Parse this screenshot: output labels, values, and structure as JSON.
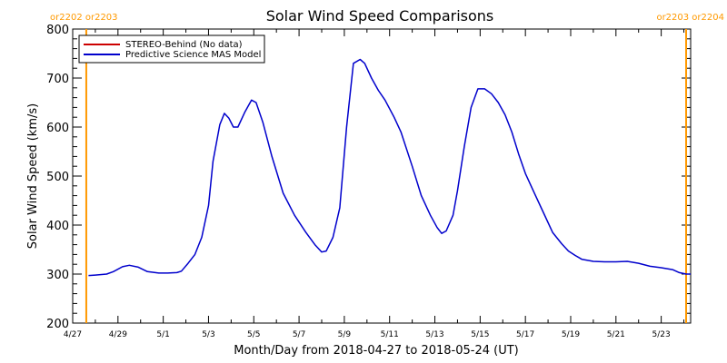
{
  "chart_data": {
    "type": "line",
    "title": "Solar Wind Speed Comparisons",
    "xlabel": "Month/Day from 2018-04-27 to 2018-05-24 (UT)",
    "ylabel": "Solar Wind Speed (km/s)",
    "ylim": [
      200,
      800
    ],
    "yticks": [
      200,
      300,
      400,
      500,
      600,
      700,
      800
    ],
    "x_range_days": [
      0,
      27.3
    ],
    "xticks": [
      {
        "day": 0,
        "label": "4/27"
      },
      {
        "day": 2,
        "label": "4/29"
      },
      {
        "day": 4,
        "label": "5/1"
      },
      {
        "day": 6,
        "label": "5/3"
      },
      {
        "day": 8,
        "label": "5/5"
      },
      {
        "day": 10,
        "label": "5/7"
      },
      {
        "day": 12,
        "label": "5/9"
      },
      {
        "day": 14,
        "label": "5/11"
      },
      {
        "day": 16,
        "label": "5/13"
      },
      {
        "day": 18,
        "label": "5/15"
      },
      {
        "day": 20,
        "label": "5/17"
      },
      {
        "day": 22,
        "label": "5/19"
      },
      {
        "day": 24,
        "label": "5/21"
      },
      {
        "day": 26,
        "label": "5/23"
      }
    ],
    "legend": {
      "placement": "top-left",
      "entries": [
        {
          "label": "STEREO-Behind (No data)",
          "color": "#cc0000"
        },
        {
          "label": "Predictive Science MAS Model",
          "color": "#0000cc"
        }
      ]
    },
    "markers": [
      {
        "day": 0.6,
        "labels": [
          "or2202",
          "or2203"
        ],
        "color": "#ff9900",
        "label_side": "left"
      },
      {
        "day": 27.1,
        "labels": [
          "or2203",
          "or2204"
        ],
        "color": "#ff9900",
        "label_side": "right"
      }
    ],
    "series": [
      {
        "name": "Predictive Science MAS Model",
        "color": "#0000cc",
        "points": [
          [
            0.7,
            297
          ],
          [
            1.0,
            298
          ],
          [
            1.5,
            300
          ],
          [
            1.8,
            305
          ],
          [
            2.2,
            315
          ],
          [
            2.5,
            318
          ],
          [
            2.9,
            314
          ],
          [
            3.3,
            305
          ],
          [
            3.8,
            302
          ],
          [
            4.2,
            302
          ],
          [
            4.6,
            303
          ],
          [
            4.8,
            306
          ],
          [
            5.1,
            322
          ],
          [
            5.4,
            340
          ],
          [
            5.7,
            375
          ],
          [
            6.0,
            440
          ],
          [
            6.2,
            530
          ],
          [
            6.5,
            605
          ],
          [
            6.7,
            628
          ],
          [
            6.9,
            618
          ],
          [
            7.1,
            600
          ],
          [
            7.3,
            600
          ],
          [
            7.6,
            630
          ],
          [
            7.9,
            655
          ],
          [
            8.1,
            650
          ],
          [
            8.4,
            610
          ],
          [
            8.8,
            540
          ],
          [
            9.3,
            465
          ],
          [
            9.8,
            420
          ],
          [
            10.3,
            385
          ],
          [
            10.7,
            360
          ],
          [
            11.0,
            345
          ],
          [
            11.2,
            347
          ],
          [
            11.5,
            375
          ],
          [
            11.8,
            435
          ],
          [
            12.1,
            600
          ],
          [
            12.4,
            730
          ],
          [
            12.7,
            738
          ],
          [
            12.9,
            730
          ],
          [
            13.2,
            700
          ],
          [
            13.5,
            675
          ],
          [
            13.8,
            655
          ],
          [
            14.2,
            620
          ],
          [
            14.5,
            590
          ],
          [
            15.0,
            520
          ],
          [
            15.4,
            460
          ],
          [
            15.8,
            420
          ],
          [
            16.1,
            395
          ],
          [
            16.3,
            383
          ],
          [
            16.5,
            388
          ],
          [
            16.8,
            420
          ],
          [
            17.0,
            470
          ],
          [
            17.3,
            560
          ],
          [
            17.6,
            640
          ],
          [
            17.9,
            678
          ],
          [
            18.2,
            678
          ],
          [
            18.5,
            668
          ],
          [
            18.8,
            650
          ],
          [
            19.1,
            625
          ],
          [
            19.4,
            590
          ],
          [
            19.7,
            545
          ],
          [
            20.0,
            505
          ],
          [
            20.4,
            465
          ],
          [
            20.8,
            425
          ],
          [
            21.2,
            385
          ],
          [
            21.6,
            362
          ],
          [
            21.9,
            347
          ],
          [
            22.2,
            338
          ],
          [
            22.5,
            330
          ],
          [
            23.0,
            326
          ],
          [
            23.5,
            325
          ],
          [
            24.0,
            325
          ],
          [
            24.5,
            326
          ],
          [
            25.0,
            322
          ],
          [
            25.5,
            316
          ],
          [
            26.0,
            313
          ],
          [
            26.5,
            309
          ],
          [
            26.8,
            303
          ],
          [
            27.1,
            300
          ],
          [
            27.3,
            300
          ]
        ]
      }
    ]
  }
}
